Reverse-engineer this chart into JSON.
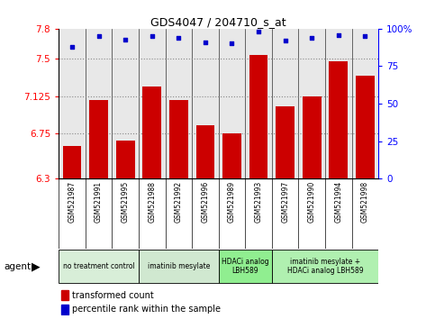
{
  "title": "GDS4047 / 204710_s_at",
  "samples": [
    "GSM521987",
    "GSM521991",
    "GSM521995",
    "GSM521988",
    "GSM521992",
    "GSM521996",
    "GSM521989",
    "GSM521993",
    "GSM521997",
    "GSM521990",
    "GSM521994",
    "GSM521998"
  ],
  "bar_values": [
    6.63,
    7.09,
    6.68,
    7.22,
    7.09,
    6.83,
    6.75,
    7.54,
    7.02,
    7.125,
    7.47,
    7.33
  ],
  "dot_values": [
    88,
    95,
    93,
    95,
    94,
    91,
    90,
    98,
    92,
    94,
    96,
    95
  ],
  "bar_color": "#cc0000",
  "dot_color": "#0000cc",
  "ylim_left": [
    6.3,
    7.8
  ],
  "ylim_right": [
    0,
    100
  ],
  "yticks_left": [
    6.3,
    6.75,
    7.125,
    7.5,
    7.8
  ],
  "ytick_labels_left": [
    "6.3",
    "6.75",
    "7.125",
    "7.5",
    "7.8"
  ],
  "yticks_right": [
    0,
    25,
    50,
    75,
    100
  ],
  "ytick_labels_right": [
    "0",
    "25",
    "50",
    "75",
    "100%"
  ],
  "hlines": [
    6.75,
    7.125,
    7.5
  ],
  "groups": [
    {
      "label": "no treatment control",
      "start": 0,
      "end": 3,
      "color": "#d8eed8"
    },
    {
      "label": "imatinib mesylate",
      "start": 3,
      "end": 6,
      "color": "#d0e8d0"
    },
    {
      "label": "HDACi analog\nLBH589",
      "start": 6,
      "end": 8,
      "color": "#90ee90"
    },
    {
      "label": "imatinib mesylate +\nHDACi analog LBH589",
      "start": 8,
      "end": 12,
      "color": "#b0f0b0"
    }
  ],
  "legend_bar_label": "transformed count",
  "legend_dot_label": "percentile rank within the sample",
  "agent_label": "agent",
  "background_color": "#ffffff",
  "plot_bg": "#e8e8e8"
}
